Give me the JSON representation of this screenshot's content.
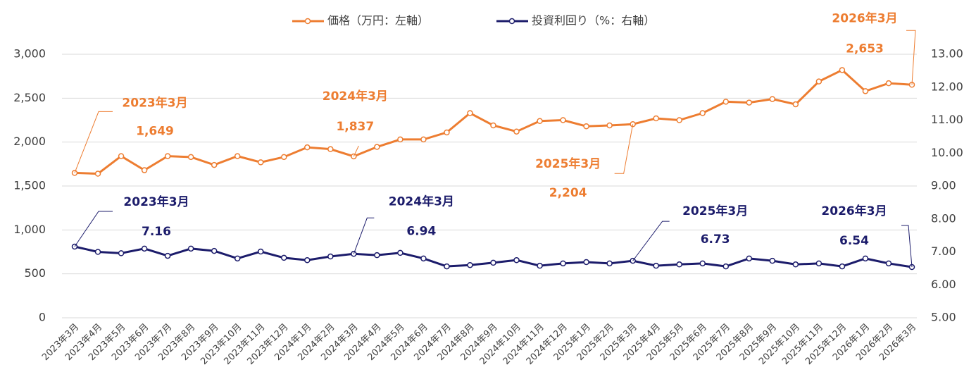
{
  "chart_data": {
    "type": "line",
    "categories": [
      "2023年3月",
      "2023年4月",
      "2023年5月",
      "2023年6月",
      "2023年7月",
      "2023年8月",
      "2023年9月",
      "2023年10月",
      "2023年11月",
      "2023年12月",
      "2024年1月",
      "2024年2月",
      "2024年3月",
      "2024年4月",
      "2024年5月",
      "2024年6月",
      "2024年7月",
      "2024年8月",
      "2024年9月",
      "2024年10月",
      "2024年11月",
      "2024年12月",
      "2025年1月",
      "2025年2月",
      "2025年3月",
      "2025年4月",
      "2025年5月",
      "2025年6月",
      "2025年7月",
      "2025年8月",
      "2025年9月",
      "2025年10月",
      "2025年11月",
      "2025年12月",
      "2026年1月",
      "2026年2月",
      "2026年3月"
    ],
    "series": [
      {
        "name": "価格（万円：左軸）",
        "color": "#ed7d31",
        "axis": "y",
        "values": [
          1649,
          1640,
          1840,
          1680,
          1840,
          1830,
          1740,
          1840,
          1770,
          1830,
          1940,
          1920,
          1837,
          1945,
          2030,
          2030,
          2110,
          2330,
          2190,
          2120,
          2240,
          2250,
          2180,
          2190,
          2204,
          2270,
          2250,
          2330,
          2460,
          2450,
          2490,
          2430,
          2690,
          2820,
          2580,
          2670,
          2653
        ],
        "value_labels": [
          "1,649",
          null,
          null,
          null,
          null,
          null,
          null,
          null,
          null,
          null,
          null,
          null,
          "1,837",
          null,
          null,
          null,
          null,
          null,
          null,
          null,
          null,
          null,
          null,
          null,
          "2,204",
          null,
          null,
          null,
          null,
          null,
          null,
          null,
          null,
          null,
          null,
          null,
          "2,653"
        ],
        "callouts": [
          "2023年3月",
          "2024年3月",
          "2025年3月",
          "2026年3月"
        ]
      },
      {
        "name": "投資利回り（%：右軸）",
        "color": "#1c1c6b",
        "axis": "y2",
        "values": [
          7.16,
          7.0,
          6.96,
          7.1,
          6.88,
          7.1,
          7.03,
          6.8,
          7.01,
          6.82,
          6.75,
          6.86,
          6.94,
          6.9,
          6.97,
          6.8,
          6.56,
          6.6,
          6.67,
          6.75,
          6.58,
          6.65,
          6.69,
          6.65,
          6.73,
          6.58,
          6.62,
          6.65,
          6.56,
          6.8,
          6.73,
          6.62,
          6.65,
          6.56,
          6.8,
          6.65,
          6.54
        ],
        "value_labels": [
          "7.16",
          null,
          null,
          null,
          null,
          null,
          null,
          null,
          null,
          null,
          null,
          null,
          "6.94",
          null,
          null,
          null,
          null,
          null,
          null,
          null,
          null,
          null,
          null,
          null,
          "6.73",
          null,
          null,
          null,
          null,
          null,
          null,
          null,
          null,
          null,
          null,
          null,
          "6.54"
        ],
        "callouts": [
          "2023年3月",
          "2024年3月",
          "2025年3月",
          "2026年3月"
        ]
      }
    ],
    "ylim": [
      0,
      3000
    ],
    "yticks": [
      0,
      500,
      {
        "value": 1000,
        "label": "1,000"
      },
      {
        "value": 1500,
        "label": "1,500"
      },
      {
        "value": 2000,
        "label": "2,000"
      },
      {
        "value": 2500,
        "label": "2,500"
      },
      {
        "value": 3000,
        "label": "3,000"
      }
    ],
    "y2lim": [
      5,
      13
    ],
    "y2ticks": [
      {
        "value": 5,
        "label": "5.00"
      },
      {
        "value": 6,
        "label": "6.00"
      },
      {
        "value": 7,
        "label": "7.00"
      },
      {
        "value": 8,
        "label": "8.00"
      },
      {
        "value": 9,
        "label": "9.00"
      },
      {
        "value": 10,
        "label": "10.00"
      },
      {
        "value": 11,
        "label": "11.00"
      },
      {
        "value": 12,
        "label": "12.00"
      },
      {
        "value": 13,
        "label": "13.00"
      }
    ],
    "grid": true,
    "legend": "top"
  }
}
